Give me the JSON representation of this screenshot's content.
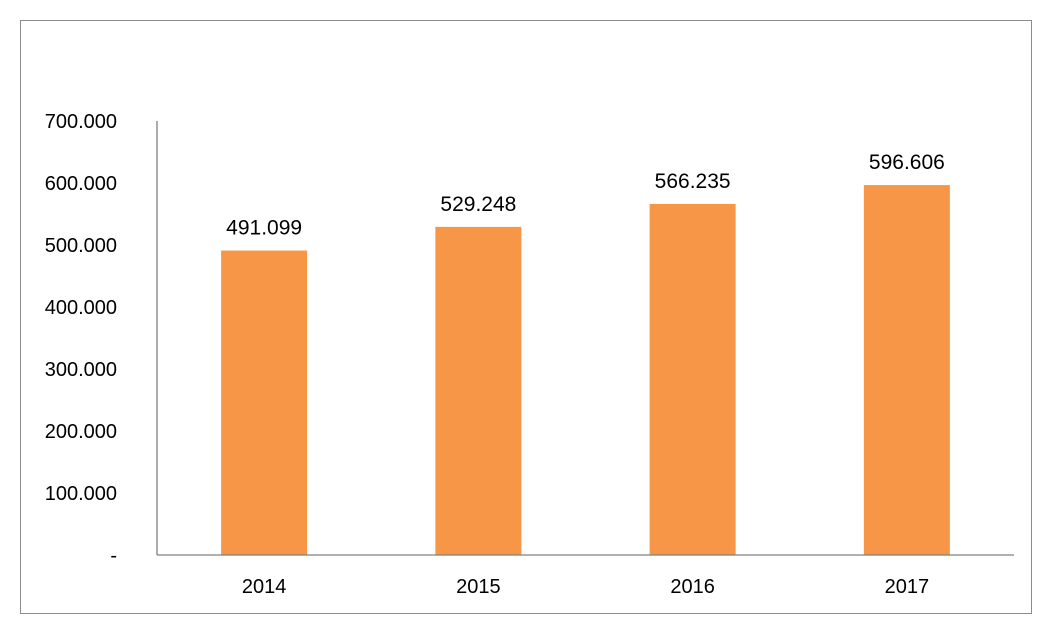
{
  "chart_data": {
    "type": "bar",
    "categories": [
      "2014",
      "2015",
      "2016",
      "2017"
    ],
    "values": [
      491.099,
      529.248,
      566.235,
      596.606
    ],
    "data_labels": [
      "491.099",
      "529.248",
      "566.235",
      "596.606"
    ],
    "y_tick_values": [
      0,
      100,
      200,
      300,
      400,
      500,
      600,
      700
    ],
    "y_tick_labels": [
      "-",
      "100.000",
      "200.000",
      "300.000",
      "400.000",
      "500.000",
      "600.000",
      "700.000"
    ],
    "ylim": [
      0,
      700
    ],
    "bar_color": "#f79646",
    "grid": false,
    "legend": "none",
    "title": "",
    "xlabel": "",
    "ylabel": ""
  }
}
